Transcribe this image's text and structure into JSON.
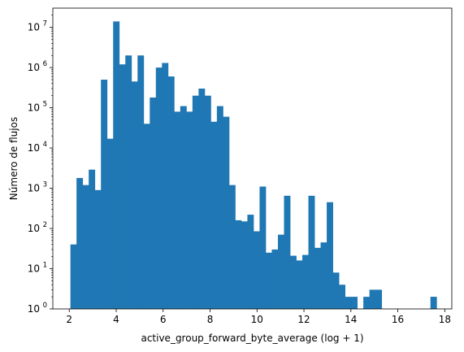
{
  "chart_data": {
    "type": "bar",
    "subtype": "histogram",
    "xlabel": "active_group_forward_byte_average (log + 1)",
    "ylabel": "Número de flujos",
    "xlim": [
      1.3,
      18.3
    ],
    "ylim": [
      1,
      30000000
    ],
    "yscale": "log",
    "grid": false,
    "bar_color": "#1f77b4",
    "bin_edges_range": [
      2.05,
      17.65
    ],
    "bin_width": 0.26,
    "x_ticks": [
      2,
      4,
      6,
      8,
      10,
      12,
      14,
      16,
      18
    ],
    "x_tick_labels": [
      "2",
      "4",
      "6",
      "8",
      "10",
      "12",
      "14",
      "16",
      "18"
    ],
    "y_ticks": [
      1,
      10,
      100,
      1000,
      10000,
      100000,
      1000000,
      10000000
    ],
    "y_tick_labels": [
      "10^0",
      "10^1",
      "10^2",
      "10^3",
      "10^4",
      "10^5",
      "10^6",
      "10^7"
    ],
    "counts": [
      40,
      1800,
      1200,
      2900,
      900,
      500000,
      17000,
      14000000,
      1200000,
      2000000,
      450000,
      2000000,
      40000,
      180000,
      1000000,
      1300000,
      600000,
      80000,
      110000,
      80000,
      200000,
      300000,
      200000,
      45000,
      110000,
      60000,
      1200,
      160,
      150,
      220,
      85,
      1100,
      25,
      30,
      70,
      650,
      21,
      16,
      22,
      650,
      33,
      45,
      450,
      8,
      4,
      2,
      2,
      0,
      2,
      3,
      3,
      0,
      0,
      0,
      0,
      0,
      0,
      0,
      0,
      2
    ]
  }
}
